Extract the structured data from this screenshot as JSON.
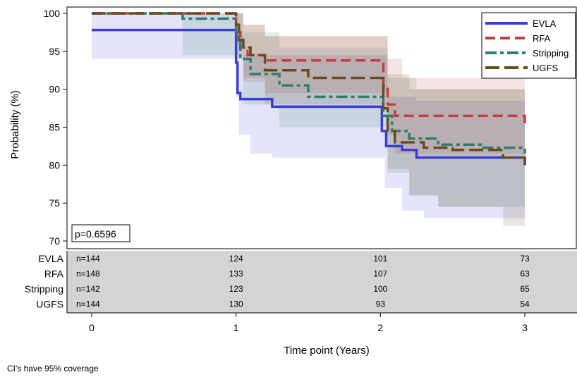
{
  "chart_data": {
    "type": "line",
    "subtype": "kaplan-meier step curves with 95% confidence bands",
    "title": "",
    "xlabel": "Time point (Years)",
    "ylabel": "Probability (%)",
    "xlim": [
      0,
      3
    ],
    "ylim": [
      70,
      100
    ],
    "x_ticks": [
      "0",
      "1",
      "2",
      "3"
    ],
    "y_ticks": [
      "100",
      "95",
      "90",
      "85",
      "80",
      "75",
      "70"
    ],
    "grid": false,
    "legend_position": "top-right",
    "annotation": "p=0.6596",
    "series": [
      {
        "name": "EVLA",
        "color": "#3b3bd6",
        "dash": "solid",
        "steps": [
          [
            0,
            97.8
          ],
          [
            1.0,
            93.5
          ],
          [
            1.01,
            89.5
          ],
          [
            1.03,
            88.7
          ],
          [
            1.25,
            87.7
          ],
          [
            2.0,
            87.7
          ],
          [
            2.01,
            84.5
          ],
          [
            2.04,
            82.5
          ],
          [
            2.15,
            82.0
          ],
          [
            2.25,
            81.0
          ],
          [
            3.0,
            80.0
          ]
        ],
        "ci_upper": [
          [
            0,
            100
          ],
          [
            1.0,
            97
          ],
          [
            1.05,
            94.5
          ],
          [
            2.0,
            94.5
          ],
          [
            2.05,
            89
          ],
          [
            2.25,
            88.5
          ],
          [
            3.0,
            88
          ]
        ],
        "ci_lower": [
          [
            0,
            94
          ],
          [
            1.0,
            89
          ],
          [
            1.02,
            84
          ],
          [
            1.1,
            81.5
          ],
          [
            1.25,
            81
          ],
          [
            2.0,
            81
          ],
          [
            2.03,
            77
          ],
          [
            2.15,
            74
          ],
          [
            2.3,
            73
          ],
          [
            3.0,
            73
          ]
        ]
      },
      {
        "name": "RFA",
        "color": "#c83c3c",
        "dash": "dashed",
        "steps": [
          [
            0,
            100
          ],
          [
            1.0,
            97.5
          ],
          [
            1.03,
            95.5
          ],
          [
            1.08,
            94.5
          ],
          [
            1.2,
            93.8
          ],
          [
            2.0,
            93.8
          ],
          [
            2.02,
            90.5
          ],
          [
            2.05,
            88
          ],
          [
            2.1,
            86.5
          ],
          [
            3.0,
            85.5
          ]
        ],
        "ci_upper": [
          [
            0,
            100
          ],
          [
            1.0,
            100
          ],
          [
            1.05,
            98.5
          ],
          [
            1.2,
            97
          ],
          [
            2.0,
            97
          ],
          [
            2.05,
            94
          ],
          [
            2.15,
            91.5
          ],
          [
            3.0,
            91.5
          ]
        ],
        "ci_lower": [
          [
            0,
            100
          ],
          [
            1.0,
            94
          ],
          [
            1.05,
            91
          ],
          [
            1.2,
            89.5
          ],
          [
            2.0,
            89.5
          ],
          [
            2.05,
            84
          ],
          [
            2.1,
            81.5
          ],
          [
            3.0,
            80.5
          ]
        ]
      },
      {
        "name": "Stripping",
        "color": "#2f7d6d",
        "dash": "dash-dot",
        "steps": [
          [
            0,
            100
          ],
          [
            0.63,
            99.3
          ],
          [
            1.0,
            97
          ],
          [
            1.03,
            94
          ],
          [
            1.1,
            92
          ],
          [
            1.3,
            90.5
          ],
          [
            1.5,
            89
          ],
          [
            2.0,
            89
          ],
          [
            2.02,
            86.5
          ],
          [
            2.08,
            84.5
          ],
          [
            2.2,
            83.5
          ],
          [
            2.4,
            82.7
          ],
          [
            2.7,
            82.3
          ],
          [
            3.0,
            81.5
          ]
        ],
        "ci_upper": [
          [
            0,
            100
          ],
          [
            1.0,
            100
          ],
          [
            1.05,
            97.5
          ],
          [
            1.3,
            95.5
          ],
          [
            2.0,
            95.5
          ],
          [
            2.05,
            91.5
          ],
          [
            2.25,
            90
          ],
          [
            3.0,
            89.5
          ]
        ],
        "ci_lower": [
          [
            0,
            100
          ],
          [
            0.63,
            94.5
          ],
          [
            1.0,
            94.5
          ],
          [
            1.05,
            88
          ],
          [
            1.3,
            85
          ],
          [
            2.0,
            85
          ],
          [
            2.05,
            79
          ],
          [
            2.2,
            76
          ],
          [
            2.4,
            74.5
          ],
          [
            3.0,
            73.5
          ]
        ]
      },
      {
        "name": "UGFS",
        "color": "#6b4a1e",
        "dash": "long-dash",
        "steps": [
          [
            0,
            100
          ],
          [
            1.0,
            98.5
          ],
          [
            1.02,
            96.5
          ],
          [
            1.05,
            95.5
          ],
          [
            1.1,
            94.5
          ],
          [
            1.2,
            92.5
          ],
          [
            1.5,
            91.5
          ],
          [
            2.0,
            91.5
          ],
          [
            2.02,
            87.5
          ],
          [
            2.05,
            84.5
          ],
          [
            2.1,
            83
          ],
          [
            2.3,
            82.3
          ],
          [
            2.5,
            82
          ],
          [
            2.85,
            81
          ],
          [
            3.0,
            80
          ]
        ],
        "ci_upper": [
          [
            0,
            100
          ],
          [
            1.0,
            100
          ],
          [
            1.05,
            98.5
          ],
          [
            1.2,
            97
          ],
          [
            2.0,
            97
          ],
          [
            2.05,
            92
          ],
          [
            2.2,
            90
          ],
          [
            3.0,
            89
          ]
        ],
        "ci_lower": [
          [
            0,
            100
          ],
          [
            1.0,
            96
          ],
          [
            1.05,
            91.5
          ],
          [
            1.2,
            88
          ],
          [
            2.0,
            88
          ],
          [
            2.05,
            79.5
          ],
          [
            2.2,
            76
          ],
          [
            2.4,
            74.5
          ],
          [
            2.85,
            72
          ],
          [
            3.0,
            71.5
          ]
        ]
      }
    ],
    "risk_table": {
      "rows": [
        {
          "label": "EVLA",
          "values": [
            "n=144",
            "124",
            "101",
            "73"
          ]
        },
        {
          "label": "RFA",
          "values": [
            "n=148",
            "133",
            "107",
            "63"
          ]
        },
        {
          "label": "Stripping",
          "values": [
            "n=142",
            "123",
            "100",
            "65"
          ]
        },
        {
          "label": "UGFS",
          "values": [
            "n=144",
            "130",
            "93",
            "54"
          ]
        }
      ]
    }
  },
  "footnote": "CI's have 95% coverage"
}
